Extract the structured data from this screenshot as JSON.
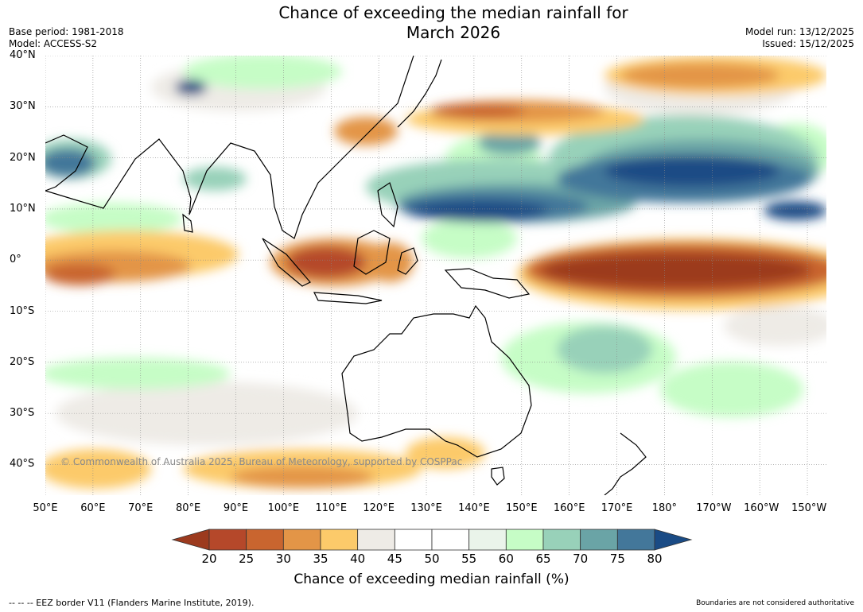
{
  "title": {
    "line1": "Chance of exceeding the median rainfall for",
    "line2": "March 2026"
  },
  "meta": {
    "base_period": "Base period: 1981-2018",
    "model": "Model: ACCESS-S2",
    "model_run": "Model run: 13/12/2025",
    "issued": "Issued: 15/12/2025"
  },
  "map": {
    "lat_range": [
      -46,
      40
    ],
    "lon_range": [
      50,
      214
    ],
    "lat_labels": [
      "40°N",
      "30°N",
      "20°N",
      "10°N",
      "0°",
      "10°S",
      "20°S",
      "30°S",
      "40°S"
    ],
    "lat_values": [
      40,
      30,
      20,
      10,
      0,
      -10,
      -20,
      -30,
      -40
    ],
    "lon_labels": [
      "50°E",
      "60°E",
      "70°E",
      "80°E",
      "90°E",
      "100°E",
      "110°E",
      "120°E",
      "130°E",
      "140°E",
      "150°E",
      "160°E",
      "170°E",
      "180°",
      "170°W",
      "160°W",
      "150°W"
    ],
    "lon_values": [
      50,
      60,
      70,
      80,
      90,
      100,
      110,
      120,
      130,
      140,
      150,
      160,
      170,
      180,
      190,
      200,
      210
    ],
    "copyright": "© Commonwealth of Australia 2025, Bureau of Meteorology, supported by COSPPac"
  },
  "colorbar": {
    "label": "Chance of exceeding median rainfall (%)",
    "ticks": [
      "20",
      "25",
      "30",
      "35",
      "40",
      "45",
      "50",
      "55",
      "60",
      "65",
      "70",
      "75",
      "80"
    ],
    "colors": [
      "#9c3a1e",
      "#b5482a",
      "#c9652f",
      "#e39547",
      "#fcca6a",
      "#eeebe6",
      "#ffffff",
      "#ffffff",
      "#eaf4ea",
      "#c6fdc6",
      "#98d1b9",
      "#6aa4a6",
      "#43779a",
      "#1a4b85"
    ],
    "extend": "both"
  },
  "footer": {
    "eez": "--  --  -- EEZ border V11 (Flanders Marine Institute, 2019).",
    "disclaimer": "Boundaries are not considered authoritative"
  }
}
